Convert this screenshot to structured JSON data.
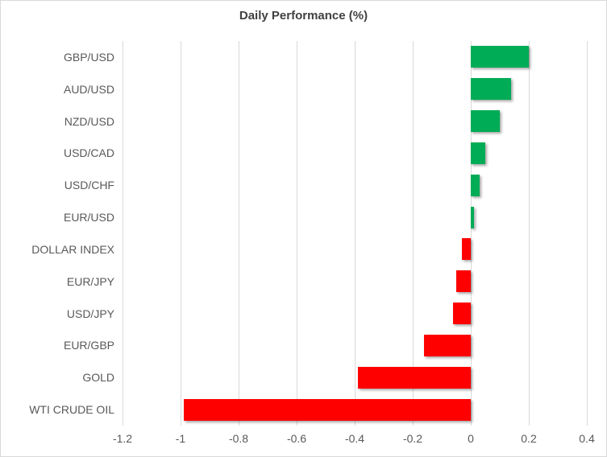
{
  "title": "Daily Performance (%)",
  "colors": {
    "positive_bar": "#00AC56",
    "negative_bar": "#FF0000",
    "gridline": "#D9D9D9",
    "title_text": "#404040",
    "axis_text": "#595959",
    "chart_border": "#D9D9D9",
    "background": "#FFFFFF"
  },
  "chart_data": {
    "type": "bar",
    "orientation": "horizontal",
    "title": "Daily Performance (%)",
    "categories": [
      "GBP/USD",
      "AUD/USD",
      "NZD/USD",
      "USD/CAD",
      "USD/CHF",
      "EUR/USD",
      "DOLLAR INDEX",
      "EUR/JPY",
      "USD/JPY",
      "EUR/GBP",
      "GOLD",
      "WTI CRUDE OIL"
    ],
    "values": [
      0.2,
      0.14,
      0.1,
      0.05,
      0.03,
      0.01,
      -0.03,
      -0.05,
      -0.06,
      -0.16,
      -0.39,
      -0.99
    ],
    "xlabel": "",
    "ylabel": "",
    "xlim": [
      -1.2,
      0.4
    ],
    "xticks": [
      -1.2,
      -1,
      -0.8,
      -0.6,
      -0.4,
      -0.2,
      0,
      0.2,
      0.4
    ],
    "xtick_labels": [
      "-1.2",
      "-1",
      "-0.8",
      "-0.6",
      "-0.4",
      "-0.2",
      "0",
      "0.2",
      "0.4"
    ],
    "grid": "vertical-on",
    "legend": "none",
    "bar_color_rule": "green if positive, red if negative"
  }
}
